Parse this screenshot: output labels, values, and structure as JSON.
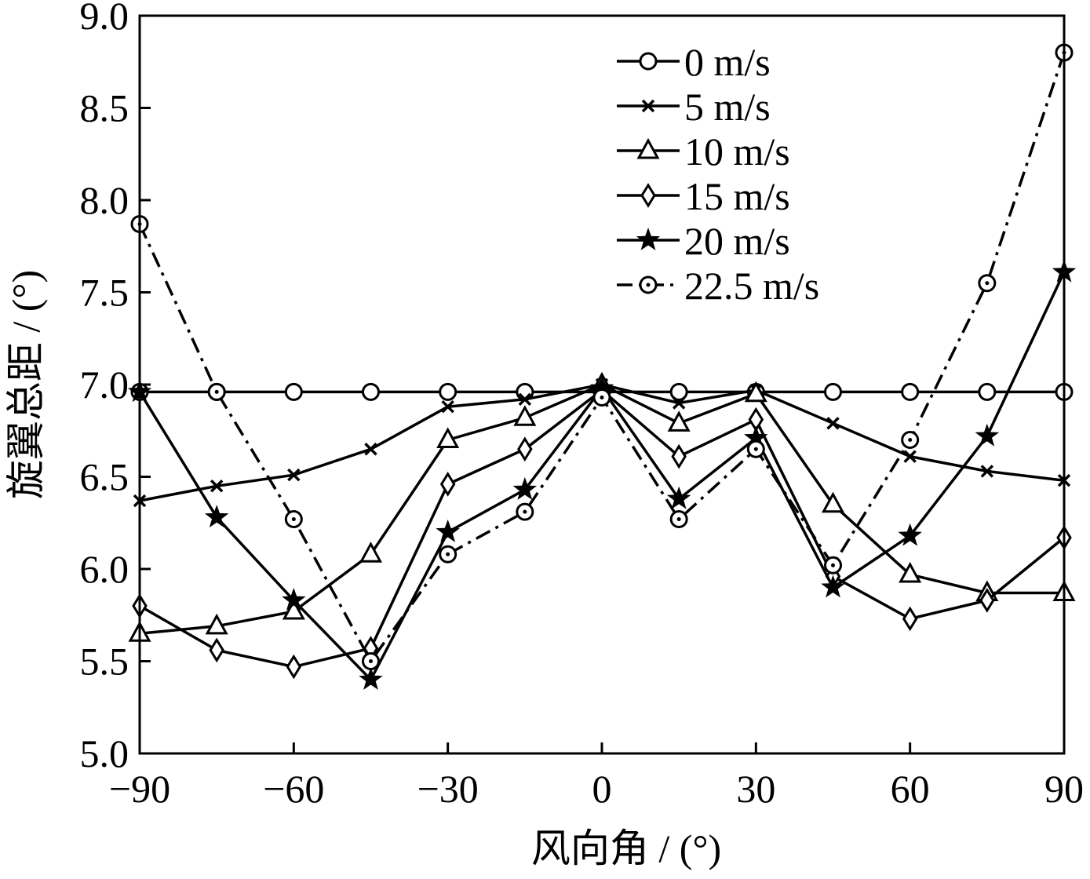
{
  "chart_data": {
    "type": "line",
    "title": "",
    "xlabel": "风向角 / (°)",
    "ylabel": "旋翼总距 / (°)",
    "xlim": [
      -90,
      90
    ],
    "ylim": [
      5.0,
      9.0
    ],
    "x_ticks": [
      -90,
      -60,
      -30,
      0,
      30,
      60,
      90
    ],
    "x_tick_labels": [
      "−90",
      "−60",
      "−30",
      "0",
      "30",
      "60",
      "90"
    ],
    "y_ticks": [
      5.0,
      5.5,
      6.0,
      6.5,
      7.0,
      7.5,
      8.0,
      8.5,
      9.0
    ],
    "y_tick_labels": [
      "5.0",
      "5.5",
      "6.0",
      "6.5",
      "7.0",
      "7.5",
      "8.0",
      "8.5",
      "9.0"
    ],
    "grid": false,
    "legend_position": "top-right",
    "x": [
      -90,
      -75,
      -60,
      -45,
      -30,
      -15,
      0,
      15,
      30,
      45,
      60,
      75,
      90
    ],
    "series": [
      {
        "name": "0 m/s",
        "marker": "circle",
        "dash": "solid",
        "values": [
          6.96,
          6.96,
          6.96,
          6.96,
          6.96,
          6.96,
          6.96,
          6.96,
          6.96,
          6.96,
          6.96,
          6.96,
          6.96
        ]
      },
      {
        "name": "5 m/s",
        "marker": "x",
        "dash": "solid",
        "values": [
          6.37,
          6.45,
          6.51,
          6.65,
          6.88,
          6.92,
          7.0,
          6.9,
          6.97,
          6.79,
          6.61,
          6.53,
          6.48
        ]
      },
      {
        "name": "10 m/s",
        "marker": "triangle",
        "dash": "solid",
        "values": [
          5.65,
          5.69,
          5.77,
          6.08,
          6.7,
          6.82,
          7.0,
          6.79,
          6.95,
          6.35,
          5.97,
          5.87,
          5.87
        ]
      },
      {
        "name": "15 m/s",
        "marker": "diamond",
        "dash": "solid",
        "values": [
          5.8,
          5.56,
          5.47,
          5.57,
          6.46,
          6.65,
          6.97,
          6.61,
          6.81,
          5.96,
          5.73,
          5.83,
          6.17
        ]
      },
      {
        "name": "20 m/s",
        "marker": "star",
        "dash": "solid",
        "values": [
          6.96,
          6.28,
          5.83,
          5.4,
          6.2,
          6.43,
          6.98,
          6.38,
          6.71,
          5.9,
          6.18,
          6.72,
          7.61
        ]
      },
      {
        "name": "22.5 m/s",
        "marker": "circle-dot",
        "dash": "dashdot",
        "values": [
          7.87,
          6.96,
          6.27,
          5.5,
          6.08,
          6.31,
          6.93,
          6.27,
          6.65,
          6.02,
          6.7,
          7.55,
          8.8
        ]
      }
    ]
  }
}
